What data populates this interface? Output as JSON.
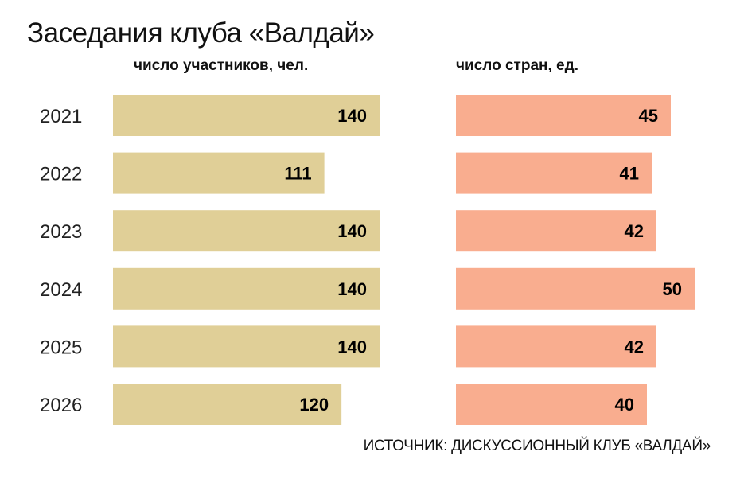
{
  "title": "Заседания клуба «Валдай»",
  "source": "ИСТОЧНИК: ДИСКУССИОННЫЙ КЛУБ «ВАЛДАЙ»",
  "colors": {
    "participants": "#e0cf97",
    "countries": "#f9ad8f"
  },
  "chart_data": [
    {
      "type": "bar",
      "orientation": "horizontal",
      "title": "число участников, чел.",
      "categories": [
        "2021",
        "2022",
        "2023",
        "2024",
        "2025",
        "2026"
      ],
      "values": [
        140,
        111,
        140,
        140,
        140,
        120
      ],
      "xlim": [
        0,
        140
      ],
      "grid": false,
      "data_labels": true
    },
    {
      "type": "bar",
      "orientation": "horizontal",
      "title": "число стран, ед.",
      "categories": [
        "2021",
        "2022",
        "2023",
        "2024",
        "2025",
        "2026"
      ],
      "values": [
        45,
        41,
        42,
        50,
        42,
        40
      ],
      "xlim": [
        0,
        50
      ],
      "grid": false,
      "data_labels": true
    }
  ]
}
